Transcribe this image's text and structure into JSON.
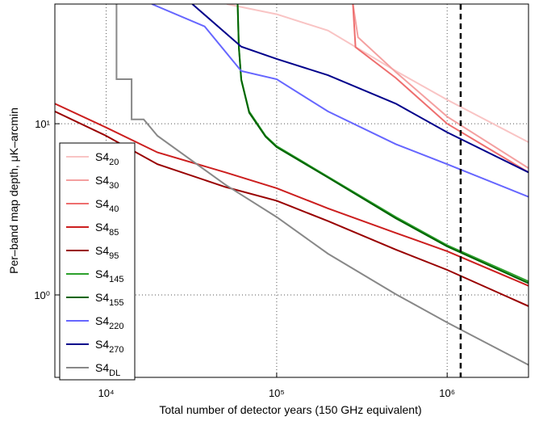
{
  "chart_data": {
    "type": "line",
    "log_x": true,
    "log_y": true,
    "grid": true,
    "legend": "upper left",
    "xlabel": "Total number of detector years (150 GHz equivalent)",
    "ylabel": "Per–band map depth, μK–arcmin",
    "xlim": [
      5000,
      3000000
    ],
    "ylim": [
      0.33,
      50
    ],
    "xticks": [
      {
        "value": 10000,
        "label": "10⁴"
      },
      {
        "value": 100000,
        "label": "10⁵"
      },
      {
        "value": 1000000,
        "label": "10⁶"
      }
    ],
    "yticks": [
      {
        "value": 1,
        "label": "10⁰"
      },
      {
        "value": 10,
        "label": "10¹"
      }
    ],
    "vline": {
      "x": 1200000,
      "color": "#000000"
    },
    "series": [
      {
        "name": "S4",
        "sub": "20",
        "color": "#f9c4c4",
        "x": [
          51000,
          100000,
          200000,
          500000,
          1000000,
          3000000
        ],
        "values": [
          50,
          43.6,
          35,
          20.3,
          13.8,
          7.8
        ]
      },
      {
        "name": "S4",
        "sub": "30",
        "color": "#f4a0a0",
        "x": [
          280000,
          300000,
          500000,
          1000000,
          3000000
        ],
        "values": [
          50,
          32,
          20,
          11,
          5.5
        ]
      },
      {
        "name": "S4",
        "sub": "40",
        "color": "#ee6e6e",
        "x": [
          280000,
          290000,
          500000,
          1000000,
          3000000
        ],
        "values": [
          50,
          28,
          18.5,
          10,
          5.2
        ]
      },
      {
        "name": "S4",
        "sub": "85",
        "color": "#cc1f1f",
        "x": [
          5000,
          10000,
          20000,
          50000,
          100000,
          200000,
          500000,
          1000000,
          3000000
        ],
        "values": [
          13.1,
          9.5,
          6.8,
          5.2,
          4.2,
          3.2,
          2.3,
          1.8,
          1.13
        ]
      },
      {
        "name": "S4",
        "sub": "95",
        "color": "#990000",
        "x": [
          5000,
          10000,
          20000,
          50000,
          100000,
          200000,
          500000,
          1000000,
          3000000
        ],
        "values": [
          11.8,
          8.5,
          5.8,
          4.27,
          3.55,
          2.7,
          1.84,
          1.4,
          0.86
        ]
      },
      {
        "name": "S4",
        "sub": "145",
        "color": "#2ca02c",
        "x": [
          59000,
          60000,
          62000,
          69000,
          86000,
          100000,
          200000,
          500000,
          1000000,
          3000000
        ],
        "values": [
          50,
          28.2,
          18.2,
          11.8,
          8.5,
          7.4,
          4.9,
          2.85,
          1.95,
          1.2
        ]
      },
      {
        "name": "S4",
        "sub": "155",
        "color": "#006400",
        "x": [
          59000,
          60000,
          62000,
          69000,
          86000,
          100000,
          200000,
          500000,
          1000000,
          3000000
        ],
        "values": [
          50,
          28,
          18,
          11.6,
          8.4,
          7.3,
          4.85,
          2.8,
          1.92,
          1.17
        ]
      },
      {
        "name": "S4",
        "sub": "220",
        "color": "#6666ff",
        "x": [
          18500,
          37800,
          62000,
          100000,
          200000,
          500000,
          1000000,
          3000000
        ],
        "values": [
          50,
          37,
          20.3,
          18.2,
          11.8,
          7.6,
          5.8,
          3.74
        ]
      },
      {
        "name": "S4",
        "sub": "270",
        "color": "#00008b",
        "x": [
          32000,
          62000,
          100000,
          200000,
          500000,
          1000000,
          3000000
        ],
        "values": [
          50,
          28.2,
          23.9,
          19.2,
          13.1,
          8.9,
          5.2
        ]
      },
      {
        "name": "S4",
        "sub": "DL",
        "color": "#888888",
        "x": [
          11500,
          11500,
          14100,
          14100,
          16600,
          20000,
          50000,
          100000,
          200000,
          500000,
          1000000,
          3000000
        ],
        "values": [
          50,
          18.2,
          18.2,
          10.6,
          10.6,
          8.5,
          4.4,
          2.85,
          1.74,
          1.01,
          0.69,
          0.39
        ]
      }
    ]
  }
}
